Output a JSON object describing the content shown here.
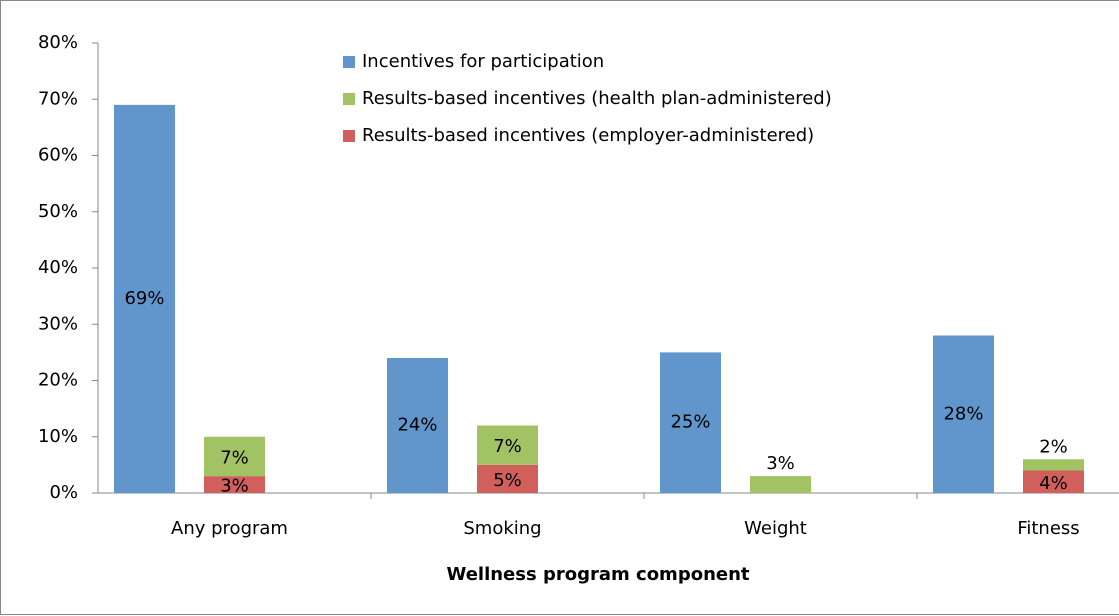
{
  "chart_data": {
    "type": "bar",
    "categories": [
      "Any program",
      "Smoking",
      "Weight",
      "Fitness"
    ],
    "xlabel": "Wellness program component",
    "series": [
      {
        "name": "Incentives for participation",
        "color": "#6196cd",
        "values": [
          69,
          24,
          25,
          28
        ],
        "value_labels": [
          "69%",
          "24%",
          "25%",
          "28%"
        ]
      },
      {
        "name": "Results-based incentives (health plan-administered)",
        "color": "#a2c363",
        "values": [
          7,
          7,
          3,
          2
        ],
        "value_labels": [
          "7%",
          "7%",
          "3%",
          "2%"
        ]
      },
      {
        "name": "Results-based incentives (employer-administered)",
        "color": "#d1605d",
        "values": [
          3,
          5,
          null,
          4
        ],
        "value_labels": [
          "3%",
          "5%",
          null,
          "4%"
        ]
      }
    ],
    "ylim": [
      0,
      80
    ],
    "yticks": [
      {
        "value": 0,
        "label": "0%"
      },
      {
        "value": 10,
        "label": "10%"
      },
      {
        "value": 20,
        "label": "20%"
      },
      {
        "value": 30,
        "label": "30%"
      },
      {
        "value": 40,
        "label": "40%"
      },
      {
        "value": 50,
        "label": "50%"
      },
      {
        "value": 60,
        "label": "60%"
      },
      {
        "value": 70,
        "label": "70%"
      },
      {
        "value": 80,
        "label": "80%"
      }
    ],
    "legend": "top"
  }
}
